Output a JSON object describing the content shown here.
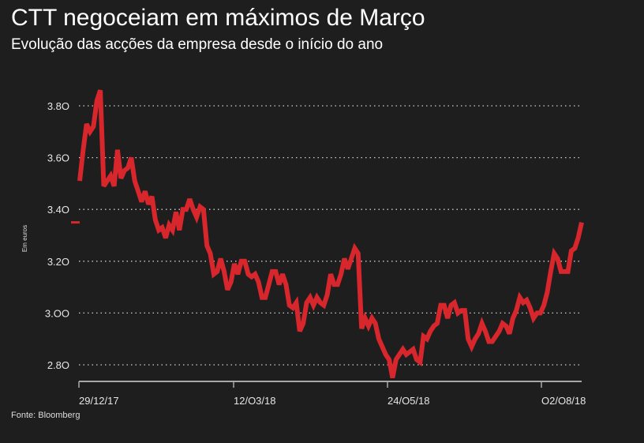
{
  "title": "CTT negoceiam em máximos de Março",
  "subtitle": "Evolução das acções da empresa desde o início do ano",
  "source": "Fonte: Bloomberg",
  "colors": {
    "line": "#d7262c",
    "background": "#1e1e1e",
    "grid": "#cfcfcf",
    "axis": "#a8a8a8"
  },
  "chart_data": {
    "type": "line",
    "title": "CTT negoceiam em máximos de Março",
    "ylabel": "Em euros",
    "xlabel": "",
    "ylim": [
      2.74,
      3.88
    ],
    "yticks": [
      3.8,
      3.6,
      3.4,
      3.2,
      3.0,
      2.8
    ],
    "ytick_labels": [
      "3.8O",
      "3.6O",
      "3.4O",
      "3.2O",
      "3.OO",
      "2.8O"
    ],
    "xtick_labels": [
      "29/12/17",
      "12/O3/18",
      "24/O5/18",
      "O2/O8/18"
    ],
    "grid": true,
    "last_value_marker": 3.35,
    "series": [
      {
        "name": "CTT",
        "values": [
          3.51,
          3.63,
          3.73,
          3.7,
          3.72,
          3.82,
          3.86,
          3.49,
          3.51,
          3.53,
          3.49,
          3.63,
          3.52,
          3.55,
          3.56,
          3.6,
          3.51,
          3.47,
          3.43,
          3.47,
          3.42,
          3.45,
          3.36,
          3.32,
          3.33,
          3.29,
          3.34,
          3.32,
          3.39,
          3.32,
          3.4,
          3.4,
          3.44,
          3.4,
          3.37,
          3.41,
          3.4,
          3.26,
          3.23,
          3.15,
          3.16,
          3.21,
          3.16,
          3.09,
          3.12,
          3.19,
          3.15,
          3.2,
          3.2,
          3.15,
          3.14,
          3.15,
          3.12,
          3.06,
          3.06,
          3.11,
          3.16,
          3.16,
          3.11,
          3.15,
          3.11,
          3.03,
          3.02,
          3.04,
          2.93,
          2.96,
          3.04,
          3.06,
          3.03,
          3.06,
          3.04,
          3.03,
          3.07,
          3.15,
          3.11,
          3.11,
          3.15,
          3.21,
          3.17,
          3.21,
          3.25,
          3.23,
          2.94,
          2.98,
          2.95,
          2.98,
          2.96,
          2.9,
          2.87,
          2.84,
          2.82,
          2.75,
          2.82,
          2.84,
          2.86,
          2.84,
          2.85,
          2.86,
          2.82,
          2.81,
          2.91,
          2.9,
          2.93,
          2.95,
          2.96,
          3.03,
          3.03,
          2.98,
          3.03,
          3.04,
          3.0,
          3.01,
          3.01,
          2.9,
          2.87,
          2.9,
          2.92,
          2.96,
          2.93,
          2.89,
          2.89,
          2.91,
          2.93,
          2.96,
          2.95,
          2.92,
          2.98,
          3.01,
          3.06,
          3.04,
          3.05,
          3.02,
          2.98,
          3.0,
          3.0,
          3.03,
          3.08,
          3.16,
          3.23,
          3.21,
          3.16,
          3.16,
          3.16,
          3.24,
          3.25,
          3.29,
          3.35
        ]
      }
    ]
  }
}
